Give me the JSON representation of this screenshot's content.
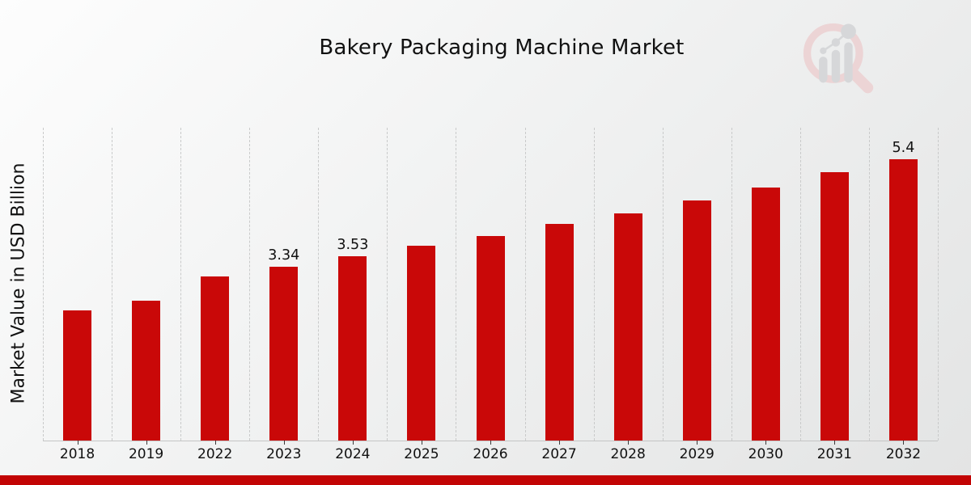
{
  "page": {
    "title": "Bakery Packaging Machine Market"
  },
  "chart_data": {
    "type": "bar",
    "title": "Bakery Packaging Machine Market",
    "xlabel": "",
    "ylabel": "Market Value in USD Billion",
    "categories": [
      "2018",
      "2019",
      "2022",
      "2023",
      "2024",
      "2025",
      "2026",
      "2027",
      "2028",
      "2029",
      "2030",
      "2031",
      "2032"
    ],
    "values": [
      2.5,
      2.68,
      3.15,
      3.34,
      3.53,
      3.73,
      3.92,
      4.15,
      4.35,
      4.6,
      4.86,
      5.14,
      5.4
    ],
    "data_labels": [
      "",
      "",
      "",
      "3.34",
      "3.53",
      "",
      "",
      "",
      "",
      "",
      "",
      "",
      "5.4"
    ],
    "ylim": [
      0,
      6
    ],
    "grid": "vertical-dashed",
    "legend_position": "none",
    "bar_color": "#c90808",
    "accent_strip_color": "#c20404"
  },
  "logo": {
    "name": "market-research-magnifier-logo",
    "ring_color": "#ecd0d1",
    "bar_color": "#d3d4d6"
  }
}
